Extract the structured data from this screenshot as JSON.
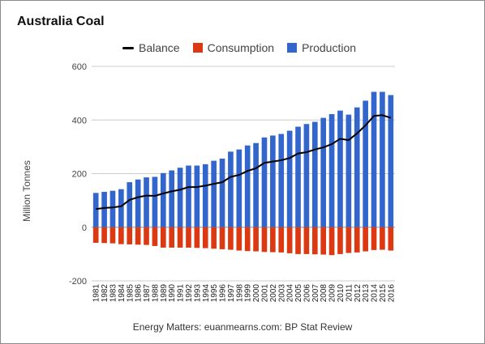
{
  "chart_data": {
    "type": "bar",
    "title": "Australia Coal",
    "ylabel": "Million Tonnes",
    "xlabel": "",
    "source": "Energy Matters: euanmearns.com: BP Stat Review",
    "ylim": [
      -200,
      600
    ],
    "yticks": [
      -200,
      0,
      200,
      400,
      600
    ],
    "grid": true,
    "legend_position": "top",
    "categories": [
      "1981",
      "1982",
      "1983",
      "1984",
      "1985",
      "1986",
      "1987",
      "1988",
      "1989",
      "1990",
      "1991",
      "1992",
      "1993",
      "1994",
      "1995",
      "1996",
      "1997",
      "1998",
      "1999",
      "2000",
      "2001",
      "2002",
      "2003",
      "2004",
      "2005",
      "2006",
      "2007",
      "2008",
      "2009",
      "2010",
      "2011",
      "2012",
      "2013",
      "2014",
      "2015",
      "2016"
    ],
    "series": [
      {
        "name": "Balance",
        "kind": "line",
        "color": "#000000",
        "values": [
          68,
          72,
          74,
          78,
          102,
          112,
          118,
          117,
          126,
          134,
          140,
          150,
          150,
          155,
          162,
          168,
          188,
          195,
          210,
          220,
          240,
          245,
          250,
          258,
          275,
          280,
          290,
          298,
          310,
          330,
          325,
          350,
          380,
          415,
          418,
          408
        ]
      },
      {
        "name": "Consumption",
        "kind": "bar",
        "color": "#dc3912",
        "values": [
          -58,
          -59,
          -60,
          -63,
          -64,
          -65,
          -66,
          -70,
          -76,
          -76,
          -76,
          -76,
          -77,
          -78,
          -80,
          -82,
          -84,
          -87,
          -89,
          -90,
          -92,
          -93,
          -94,
          -97,
          -100,
          -100,
          -101,
          -102,
          -104,
          -100,
          -96,
          -94,
          -90,
          -85,
          -84,
          -87
        ]
      },
      {
        "name": "Production",
        "kind": "bar",
        "color": "#3366cc",
        "values": [
          128,
          132,
          136,
          142,
          168,
          178,
          186,
          188,
          202,
          212,
          222,
          230,
          230,
          235,
          248,
          256,
          282,
          290,
          305,
          314,
          335,
          342,
          348,
          360,
          375,
          385,
          393,
          408,
          422,
          435,
          420,
          447,
          472,
          505,
          505,
          493
        ]
      }
    ]
  }
}
